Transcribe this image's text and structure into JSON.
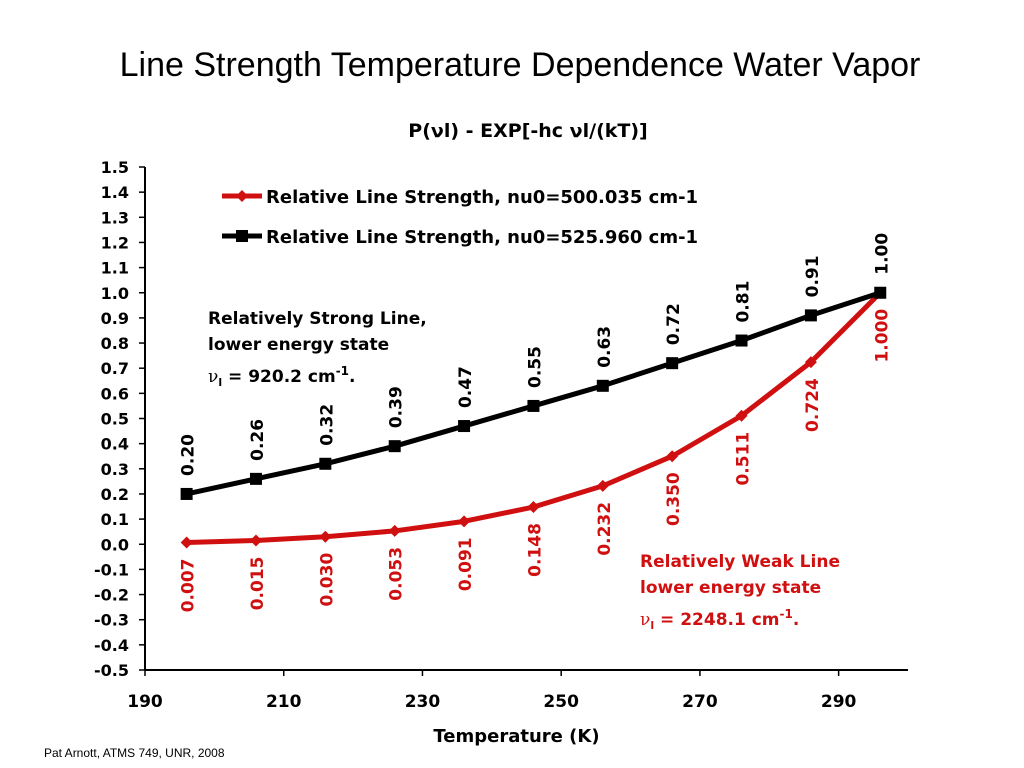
{
  "slide": {
    "title": "Line Strength Temperature Dependence Water Vapor",
    "footer": "Pat Arnott, ATMS 749, UNR, 2008"
  },
  "chart_data": {
    "type": "line",
    "subtitle": "P(νl) - EXP[-hc νl/(kT)]",
    "xlabel": "Temperature (K)",
    "ylabel": "",
    "xlim": [
      190,
      300
    ],
    "ylim": [
      -0.5,
      1.5
    ],
    "x_ticks": [
      190,
      210,
      230,
      250,
      270,
      290
    ],
    "y_ticks": [
      "1.5",
      "1.4",
      "1.3",
      "1.2",
      "1.1",
      "1.0",
      "0.9",
      "0.8",
      "0.7",
      "0.6",
      "0.5",
      "0.4",
      "0.3",
      "0.2",
      "0.1",
      "0.0",
      "-0.1",
      "-0.2",
      "-0.3",
      "-0.4",
      "-0.5"
    ],
    "legend_position": "top",
    "series": [
      {
        "name": "Relative Line Strength, nu0=500.035 cm-1",
        "color": "#d01010",
        "marker": "diamond",
        "x": [
          196,
          206,
          216,
          226,
          236,
          246,
          256,
          266,
          276,
          286,
          296
        ],
        "values": [
          0.007,
          0.015,
          0.03,
          0.053,
          0.091,
          0.148,
          0.232,
          0.35,
          0.511,
          0.724,
          1.0
        ],
        "labels": [
          "0.007",
          "0.015",
          "0.030",
          "0.053",
          "0.091",
          "0.148",
          "0.232",
          "0.350",
          "0.511",
          "0.724",
          "1.000"
        ]
      },
      {
        "name": "Relative Line Strength, nu0=525.960 cm-1",
        "color": "#000000",
        "marker": "square",
        "x": [
          196,
          206,
          216,
          226,
          236,
          246,
          256,
          266,
          276,
          286,
          296
        ],
        "values": [
          0.2,
          0.26,
          0.32,
          0.39,
          0.47,
          0.55,
          0.63,
          0.72,
          0.81,
          0.91,
          1.0
        ],
        "labels": [
          "0.20",
          "0.26",
          "0.32",
          "0.39",
          "0.47",
          "0.55",
          "0.63",
          "0.72",
          "0.81",
          "0.91",
          "1.00"
        ]
      }
    ],
    "annotations": [
      {
        "color": "#000000",
        "lines": [
          "Relatively Strong Line,",
          "lower energy state"
        ],
        "nu_value": "= 920.2 cm",
        "exponent": "-1",
        "period": "."
      },
      {
        "color": "#d01010",
        "lines": [
          "Relatively Weak Line",
          "lower energy state"
        ],
        "nu_value": "= 2248.1 cm",
        "exponent": "-1",
        "period": "."
      }
    ]
  }
}
